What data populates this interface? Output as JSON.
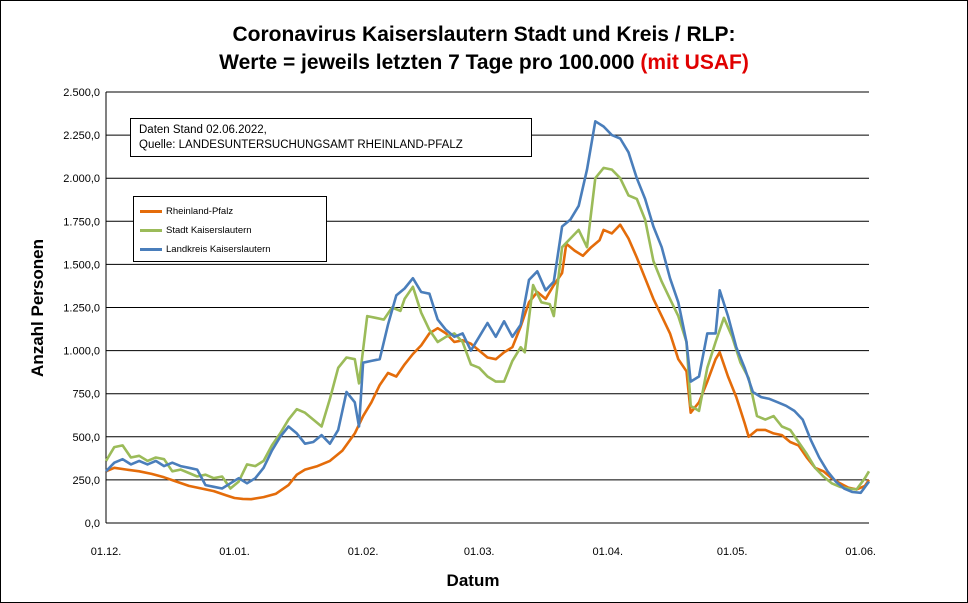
{
  "title": {
    "line1": "Coronavirus Kaiserslautern Stadt und Kreis / RLP:",
    "line2_main": "Werte = jeweils letzten 7 Tage pro 100.000 ",
    "line2_red": "(mit USAF)"
  },
  "note": {
    "line1": "Daten Stand 02.06.2022,",
    "line2": "Quelle: LANDESUNTERSUCHUNGSAMT RHEINLAND-PFALZ"
  },
  "chart_data": {
    "type": "line",
    "xlabel": "Datum",
    "ylabel": "Anzahl Personen",
    "ylim": [
      0,
      2500
    ],
    "yticks": [
      0,
      250,
      500,
      750,
      1000,
      1250,
      1500,
      1750,
      2000,
      2250,
      2500
    ],
    "ytick_labels": [
      "0,0",
      "250,0",
      "500,0",
      "750,0",
      "1.000,0",
      "1.250,0",
      "1.500,0",
      "1.750,0",
      "2.000,0",
      "2.250,0",
      "2.500,0"
    ],
    "xticks": [
      {
        "day": 0,
        "label": "01.12."
      },
      {
        "day": 31,
        "label": "01.01."
      },
      {
        "day": 62,
        "label": "01.02."
      },
      {
        "day": 90,
        "label": "01.03."
      },
      {
        "day": 121,
        "label": "01.04."
      },
      {
        "day": 151,
        "label": "01.05."
      },
      {
        "day": 182,
        "label": "01.06."
      }
    ],
    "xlim": [
      0,
      184
    ],
    "grid": "horizontal",
    "legend_position": "upper-left",
    "series": [
      {
        "name": "Rheinland-Pfalz",
        "color": "#e46c0a",
        "points": [
          [
            0,
            300
          ],
          [
            2,
            320
          ],
          [
            5,
            310
          ],
          [
            8,
            300
          ],
          [
            11,
            285
          ],
          [
            14,
            265
          ],
          [
            17,
            240
          ],
          [
            20,
            215
          ],
          [
            23,
            200
          ],
          [
            26,
            185
          ],
          [
            29,
            160
          ],
          [
            31,
            145
          ],
          [
            33,
            140
          ],
          [
            35,
            138
          ],
          [
            38,
            150
          ],
          [
            41,
            170
          ],
          [
            44,
            220
          ],
          [
            46,
            280
          ],
          [
            48,
            310
          ],
          [
            51,
            330
          ],
          [
            54,
            360
          ],
          [
            57,
            420
          ],
          [
            60,
            520
          ],
          [
            62,
            620
          ],
          [
            64,
            700
          ],
          [
            66,
            800
          ],
          [
            68,
            870
          ],
          [
            70,
            850
          ],
          [
            72,
            920
          ],
          [
            74,
            980
          ],
          [
            76,
            1030
          ],
          [
            78,
            1100
          ],
          [
            80,
            1130
          ],
          [
            82,
            1100
          ],
          [
            84,
            1050
          ],
          [
            86,
            1060
          ],
          [
            88,
            1040
          ],
          [
            90,
            1000
          ],
          [
            92,
            960
          ],
          [
            94,
            950
          ],
          [
            96,
            990
          ],
          [
            98,
            1020
          ],
          [
            100,
            1140
          ],
          [
            102,
            1280
          ],
          [
            104,
            1340
          ],
          [
            106,
            1300
          ],
          [
            108,
            1380
          ],
          [
            110,
            1450
          ],
          [
            111,
            1620
          ],
          [
            113,
            1580
          ],
          [
            115,
            1550
          ],
          [
            117,
            1600
          ],
          [
            119,
            1640
          ],
          [
            120,
            1700
          ],
          [
            122,
            1680
          ],
          [
            124,
            1730
          ],
          [
            126,
            1650
          ],
          [
            128,
            1540
          ],
          [
            130,
            1420
          ],
          [
            132,
            1300
          ],
          [
            134,
            1200
          ],
          [
            136,
            1100
          ],
          [
            138,
            950
          ],
          [
            140,
            880
          ],
          [
            141,
            640
          ],
          [
            143,
            700
          ],
          [
            145,
            820
          ],
          [
            147,
            950
          ],
          [
            148,
            990
          ],
          [
            150,
            850
          ],
          [
            152,
            730
          ],
          [
            154,
            580
          ],
          [
            155,
            500
          ],
          [
            157,
            540
          ],
          [
            159,
            540
          ],
          [
            161,
            520
          ],
          [
            163,
            510
          ],
          [
            165,
            470
          ],
          [
            167,
            450
          ],
          [
            169,
            380
          ],
          [
            171,
            320
          ],
          [
            173,
            300
          ],
          [
            175,
            260
          ],
          [
            177,
            230
          ],
          [
            179,
            205
          ],
          [
            181,
            195
          ],
          [
            183,
            215
          ],
          [
            184,
            250
          ]
        ]
      },
      {
        "name": "Stadt Kaiserslautern",
        "color": "#9bbb59",
        "points": [
          [
            0,
            360
          ],
          [
            2,
            440
          ],
          [
            4,
            450
          ],
          [
            6,
            380
          ],
          [
            8,
            390
          ],
          [
            10,
            360
          ],
          [
            12,
            380
          ],
          [
            14,
            370
          ],
          [
            16,
            300
          ],
          [
            18,
            310
          ],
          [
            20,
            290
          ],
          [
            22,
            270
          ],
          [
            24,
            280
          ],
          [
            26,
            260
          ],
          [
            28,
            270
          ],
          [
            30,
            200
          ],
          [
            32,
            240
          ],
          [
            34,
            340
          ],
          [
            36,
            330
          ],
          [
            38,
            360
          ],
          [
            40,
            450
          ],
          [
            42,
            520
          ],
          [
            44,
            600
          ],
          [
            46,
            660
          ],
          [
            48,
            640
          ],
          [
            50,
            600
          ],
          [
            52,
            560
          ],
          [
            54,
            720
          ],
          [
            56,
            900
          ],
          [
            58,
            960
          ],
          [
            60,
            950
          ],
          [
            61,
            810
          ],
          [
            63,
            1200
          ],
          [
            65,
            1190
          ],
          [
            67,
            1180
          ],
          [
            69,
            1250
          ],
          [
            71,
            1230
          ],
          [
            72,
            1300
          ],
          [
            74,
            1370
          ],
          [
            76,
            1220
          ],
          [
            78,
            1120
          ],
          [
            80,
            1050
          ],
          [
            82,
            1080
          ],
          [
            84,
            1100
          ],
          [
            86,
            1050
          ],
          [
            88,
            920
          ],
          [
            90,
            900
          ],
          [
            92,
            850
          ],
          [
            94,
            820
          ],
          [
            96,
            820
          ],
          [
            98,
            940
          ],
          [
            100,
            1020
          ],
          [
            101,
            990
          ],
          [
            103,
            1380
          ],
          [
            105,
            1280
          ],
          [
            107,
            1270
          ],
          [
            108,
            1200
          ],
          [
            110,
            1600
          ],
          [
            112,
            1650
          ],
          [
            114,
            1700
          ],
          [
            116,
            1600
          ],
          [
            118,
            2000
          ],
          [
            120,
            2060
          ],
          [
            122,
            2050
          ],
          [
            124,
            2000
          ],
          [
            126,
            1900
          ],
          [
            128,
            1880
          ],
          [
            130,
            1760
          ],
          [
            132,
            1520
          ],
          [
            134,
            1400
          ],
          [
            136,
            1300
          ],
          [
            138,
            1200
          ],
          [
            140,
            1050
          ],
          [
            141,
            680
          ],
          [
            143,
            650
          ],
          [
            145,
            900
          ],
          [
            147,
            1050
          ],
          [
            149,
            1190
          ],
          [
            151,
            1080
          ],
          [
            153,
            930
          ],
          [
            155,
            840
          ],
          [
            157,
            620
          ],
          [
            159,
            600
          ],
          [
            161,
            620
          ],
          [
            163,
            560
          ],
          [
            165,
            540
          ],
          [
            167,
            470
          ],
          [
            169,
            400
          ],
          [
            171,
            320
          ],
          [
            173,
            270
          ],
          [
            175,
            230
          ],
          [
            177,
            210
          ],
          [
            179,
            200
          ],
          [
            181,
            195
          ],
          [
            183,
            260
          ],
          [
            184,
            300
          ]
        ]
      },
      {
        "name": "Landkreis Kaiserslautern",
        "color": "#4a7ebb",
        "points": [
          [
            0,
            300
          ],
          [
            2,
            350
          ],
          [
            4,
            370
          ],
          [
            6,
            340
          ],
          [
            8,
            360
          ],
          [
            10,
            340
          ],
          [
            12,
            360
          ],
          [
            14,
            330
          ],
          [
            16,
            350
          ],
          [
            18,
            330
          ],
          [
            20,
            320
          ],
          [
            22,
            310
          ],
          [
            24,
            220
          ],
          [
            26,
            210
          ],
          [
            28,
            200
          ],
          [
            30,
            230
          ],
          [
            32,
            260
          ],
          [
            34,
            230
          ],
          [
            36,
            260
          ],
          [
            38,
            320
          ],
          [
            40,
            420
          ],
          [
            42,
            500
          ],
          [
            44,
            560
          ],
          [
            46,
            520
          ],
          [
            48,
            460
          ],
          [
            50,
            470
          ],
          [
            52,
            510
          ],
          [
            54,
            460
          ],
          [
            56,
            540
          ],
          [
            58,
            760
          ],
          [
            60,
            700
          ],
          [
            61,
            560
          ],
          [
            62,
            930
          ],
          [
            64,
            940
          ],
          [
            66,
            950
          ],
          [
            68,
            1150
          ],
          [
            70,
            1320
          ],
          [
            72,
            1360
          ],
          [
            74,
            1420
          ],
          [
            76,
            1340
          ],
          [
            78,
            1330
          ],
          [
            80,
            1180
          ],
          [
            82,
            1120
          ],
          [
            84,
            1080
          ],
          [
            86,
            1100
          ],
          [
            88,
            1000
          ],
          [
            90,
            1080
          ],
          [
            92,
            1160
          ],
          [
            94,
            1080
          ],
          [
            96,
            1170
          ],
          [
            98,
            1080
          ],
          [
            100,
            1150
          ],
          [
            102,
            1410
          ],
          [
            104,
            1460
          ],
          [
            106,
            1350
          ],
          [
            108,
            1400
          ],
          [
            110,
            1720
          ],
          [
            112,
            1760
          ],
          [
            114,
            1840
          ],
          [
            116,
            2050
          ],
          [
            118,
            2330
          ],
          [
            120,
            2300
          ],
          [
            122,
            2250
          ],
          [
            124,
            2230
          ],
          [
            126,
            2150
          ],
          [
            128,
            2000
          ],
          [
            130,
            1880
          ],
          [
            132,
            1720
          ],
          [
            134,
            1600
          ],
          [
            136,
            1420
          ],
          [
            138,
            1280
          ],
          [
            140,
            1050
          ],
          [
            141,
            820
          ],
          [
            143,
            850
          ],
          [
            145,
            1100
          ],
          [
            147,
            1100
          ],
          [
            148,
            1350
          ],
          [
            150,
            1200
          ],
          [
            152,
            1020
          ],
          [
            154,
            900
          ],
          [
            156,
            760
          ],
          [
            158,
            730
          ],
          [
            160,
            720
          ],
          [
            162,
            700
          ],
          [
            164,
            680
          ],
          [
            166,
            650
          ],
          [
            168,
            600
          ],
          [
            170,
            480
          ],
          [
            172,
            380
          ],
          [
            174,
            300
          ],
          [
            176,
            240
          ],
          [
            178,
            200
          ],
          [
            180,
            180
          ],
          [
            182,
            175
          ],
          [
            184,
            240
          ]
        ]
      }
    ]
  }
}
